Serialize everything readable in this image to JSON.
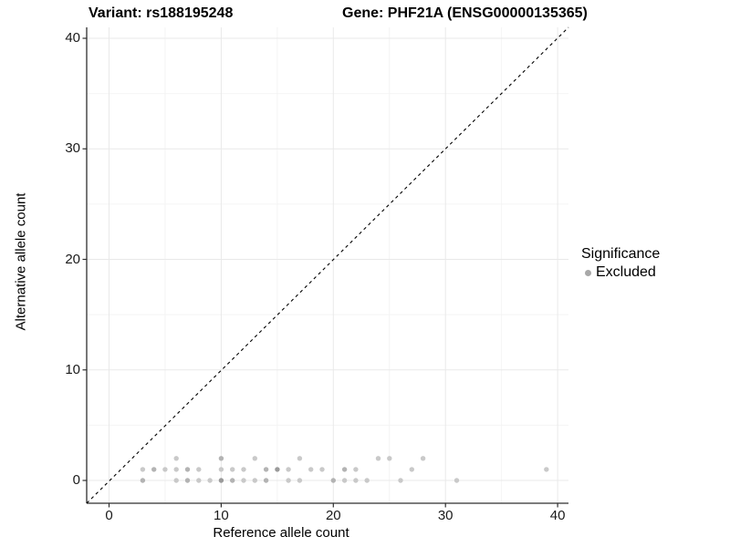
{
  "titles": {
    "variant": "Variant: rs188195248",
    "gene": "Gene: PHF21A (ENSG00000135365)"
  },
  "legend": {
    "title": "Significance",
    "entries": [
      {
        "label": "Excluded",
        "color": "#a8a8a8"
      }
    ]
  },
  "colors": {
    "background": "#ffffff",
    "axis_line": "#2e2e2e",
    "grid_major": "#e9e9e9",
    "grid_minor": "#f4f4f4",
    "identity_line": "#000000",
    "point_light": "#c9c9c9",
    "point_medium": "#b3b3b3",
    "point_dark": "#9a9a9a"
  },
  "chart_data": {
    "type": "scatter",
    "title": "Variant: rs188195248    Gene: PHF21A (ENSG00000135365)",
    "xlabel": "Reference allele count",
    "ylabel": "Alternative allele count",
    "xlim": [
      -2,
      41
    ],
    "ylim": [
      -2,
      41
    ],
    "x_major_ticks": [
      0,
      10,
      20,
      30,
      40
    ],
    "y_major_ticks": [
      0,
      10,
      20,
      30,
      40
    ],
    "x_minor_ticks": [
      5,
      15,
      25,
      35
    ],
    "y_minor_ticks": [
      5,
      15,
      25,
      35
    ],
    "grid": true,
    "legend_position": "right",
    "identity_line": {
      "style": "dashed",
      "equation": "y = x"
    },
    "series": [
      {
        "name": "Excluded",
        "points": [
          [
            3,
            0,
            "m"
          ],
          [
            6,
            0,
            "l"
          ],
          [
            7,
            0,
            "m"
          ],
          [
            8,
            0,
            "l"
          ],
          [
            9,
            0,
            "l"
          ],
          [
            10,
            0,
            "d"
          ],
          [
            11,
            0,
            "m"
          ],
          [
            12,
            0,
            "l"
          ],
          [
            13,
            0,
            "l"
          ],
          [
            14,
            0,
            "m"
          ],
          [
            16,
            0,
            "l"
          ],
          [
            17,
            0,
            "l"
          ],
          [
            20,
            0,
            "m"
          ],
          [
            21,
            0,
            "l"
          ],
          [
            22,
            0,
            "l"
          ],
          [
            23,
            0,
            "l"
          ],
          [
            26,
            0,
            "l"
          ],
          [
            31,
            0,
            "l"
          ],
          [
            3,
            1,
            "l"
          ],
          [
            4,
            1,
            "m"
          ],
          [
            5,
            1,
            "l"
          ],
          [
            6,
            1,
            "l"
          ],
          [
            7,
            1,
            "m"
          ],
          [
            8,
            1,
            "l"
          ],
          [
            10,
            1,
            "l"
          ],
          [
            11,
            1,
            "l"
          ],
          [
            12,
            1,
            "l"
          ],
          [
            14,
            1,
            "m"
          ],
          [
            15,
            1,
            "d"
          ],
          [
            16,
            1,
            "l"
          ],
          [
            18,
            1,
            "l"
          ],
          [
            19,
            1,
            "l"
          ],
          [
            21,
            1,
            "m"
          ],
          [
            22,
            1,
            "l"
          ],
          [
            27,
            1,
            "l"
          ],
          [
            39,
            1,
            "l"
          ],
          [
            6,
            2,
            "l"
          ],
          [
            10,
            2,
            "m"
          ],
          [
            13,
            2,
            "l"
          ],
          [
            17,
            2,
            "l"
          ],
          [
            24,
            2,
            "l"
          ],
          [
            25,
            2,
            "l"
          ],
          [
            28,
            2,
            "l"
          ]
        ]
      }
    ]
  }
}
